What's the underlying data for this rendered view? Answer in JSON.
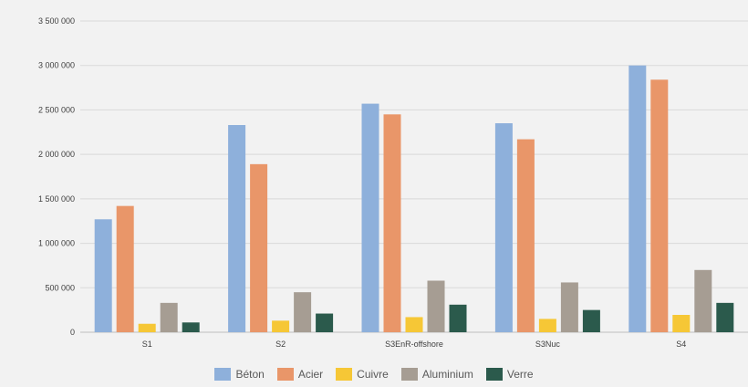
{
  "chart_data": {
    "type": "bar",
    "categories": [
      "S1",
      "S2",
      "S3EnR-offshore",
      "S3Nuc",
      "S4"
    ],
    "series": [
      {
        "name": "Béton",
        "color": "#8eb0db",
        "values": [
          1270000,
          2330000,
          2570000,
          2350000,
          3000000
        ]
      },
      {
        "name": "Acier",
        "color": "#e99669",
        "values": [
          1420000,
          1890000,
          2450000,
          2170000,
          2840000
        ]
      },
      {
        "name": "Cuivre",
        "color": "#f6c736",
        "values": [
          95000,
          130000,
          170000,
          150000,
          195000
        ]
      },
      {
        "name": "Aluminium",
        "color": "#a69d93",
        "values": [
          330000,
          450000,
          580000,
          560000,
          700000
        ]
      },
      {
        "name": "Verre",
        "color": "#2b5a4c",
        "values": [
          110000,
          210000,
          310000,
          250000,
          330000
        ]
      }
    ],
    "ylim": [
      0,
      3500000
    ],
    "yticks": [
      0,
      500000,
      1000000,
      1500000,
      2000000,
      2500000,
      3000000,
      3500000
    ],
    "ytick_labels": [
      "0",
      "500 000",
      "1 000 000",
      "1 500 000",
      "2 000 000",
      "2 500 000",
      "3 000 000",
      "3 500 000"
    ],
    "grid": true,
    "legend_position": "bottom"
  }
}
